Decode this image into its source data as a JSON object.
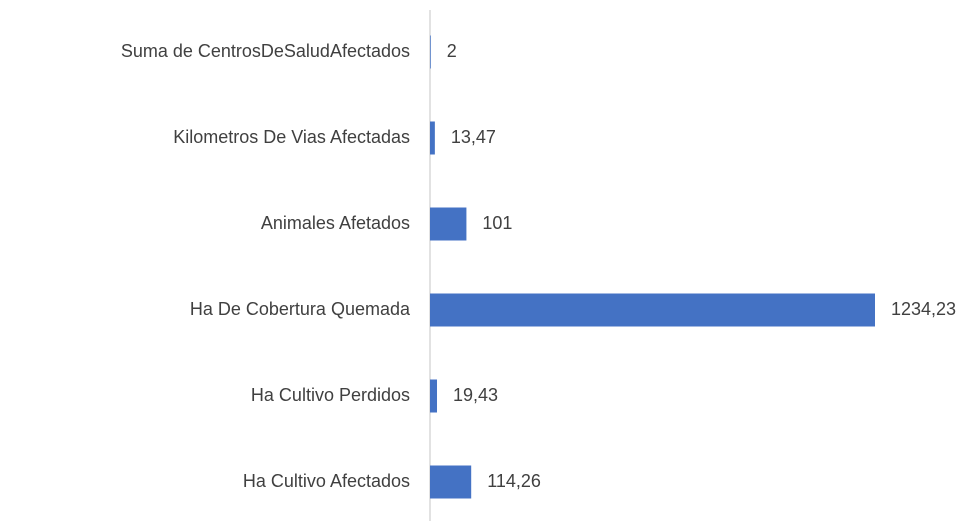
{
  "chart_data": {
    "type": "barh",
    "categories": [
      "Suma de CentrosDeSaludAfectados",
      "Kilometros De Vias Afectadas",
      "Animales Afetados",
      "Ha De Cobertura Quemada",
      "Ha Cultivo Perdidos",
      "Ha Cultivo Afectados"
    ],
    "values": [
      2,
      13.47,
      101,
      1234.23,
      19.43,
      114.26
    ],
    "value_labels": [
      "2",
      "13,47",
      "101",
      "1234,23",
      "19,43",
      "114,26"
    ],
    "color": "#4472c4"
  }
}
